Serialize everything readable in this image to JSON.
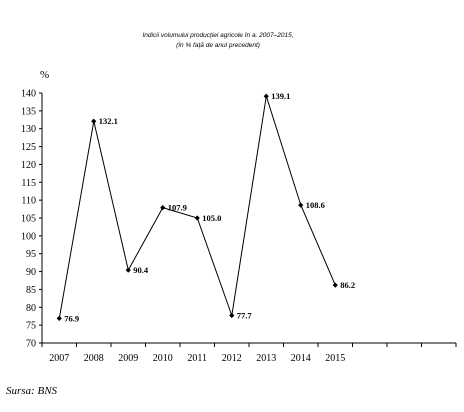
{
  "chart_data": {
    "type": "line",
    "title": "Indicii volumului producției agricole în a. 2007–2015,",
    "subtitle": "(în % față de anul precedent)",
    "ylabel": "%",
    "xlabel": "",
    "categories": [
      "2007",
      "2008",
      "2009",
      "2010",
      "2011",
      "2012",
      "2013",
      "2014",
      "2015"
    ],
    "values": [
      76.9,
      132.1,
      90.4,
      107.9,
      105.0,
      77.7,
      139.1,
      108.6,
      86.2
    ],
    "data_labels": [
      "76.9",
      "132.1",
      "90.4",
      "107.9",
      "105.0",
      "77.7",
      "139.1",
      "108.6",
      "86.2"
    ],
    "ylim": [
      70,
      140
    ],
    "yticks": [
      "70",
      "75",
      "80",
      "85",
      "90",
      "95",
      "100",
      "105",
      "110",
      "115",
      "120",
      "125",
      "130",
      "135",
      "140"
    ],
    "extra_empty_categories": 3,
    "grid": false,
    "legend": "none",
    "line_color": "#000000",
    "marker": "diamond"
  },
  "source": "Sursa: BNS"
}
